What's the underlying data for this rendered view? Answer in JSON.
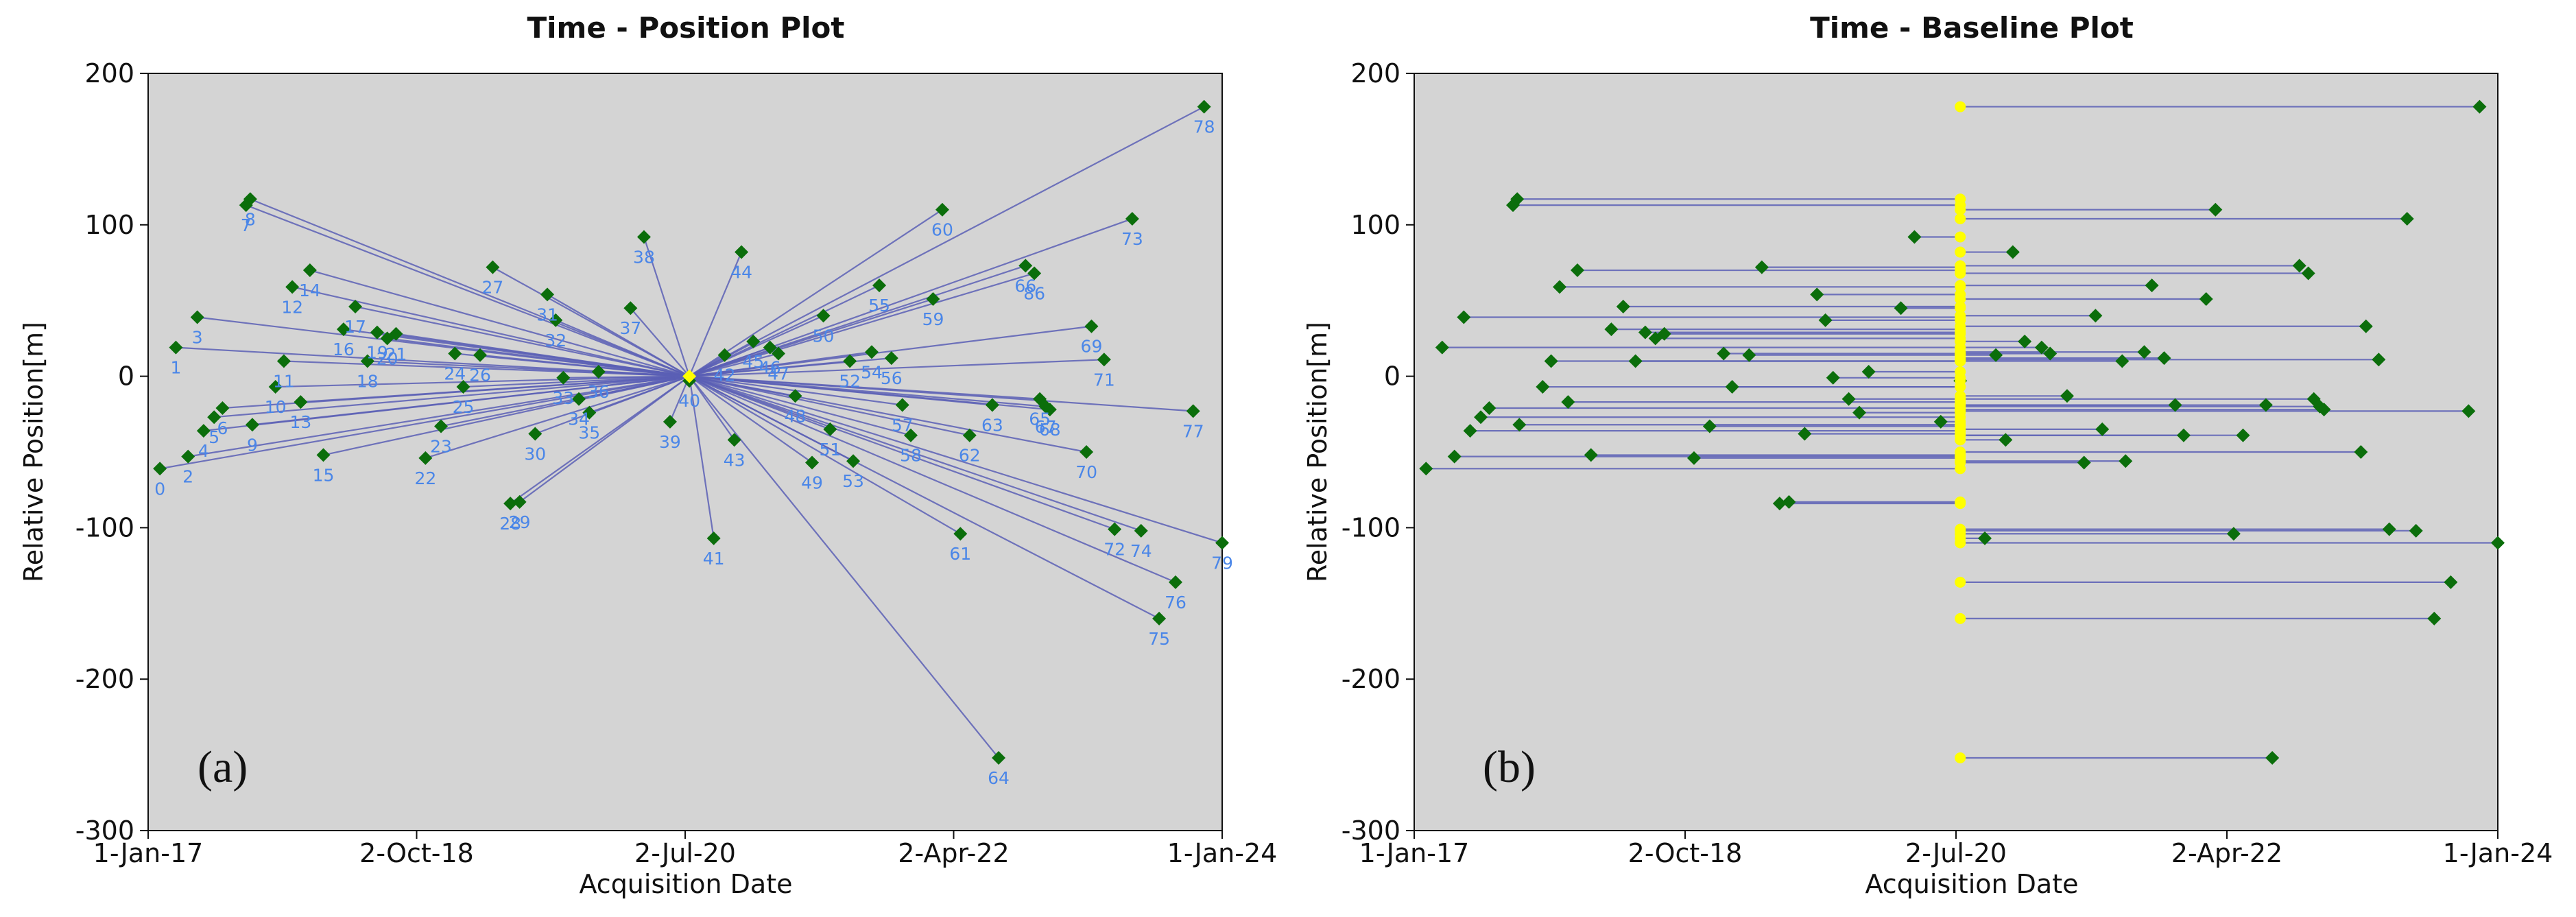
{
  "chart_data": [
    {
      "type": "scatter",
      "title": "Time - Position Plot",
      "xlabel": "Acquisition Date",
      "ylabel": "Relative Position[m]",
      "panel_label": "(a)",
      "xlim": [
        0,
        2556
      ],
      "ylim": [
        -300,
        200
      ],
      "x_ticks": [
        {
          "value": 0,
          "label": "1-Jan-17"
        },
        {
          "value": 639,
          "label": "2-Oct-18"
        },
        {
          "value": 1278,
          "label": "2-Jul-20"
        },
        {
          "value": 1917,
          "label": "2-Apr-22"
        },
        {
          "value": 2556,
          "label": "1-Jan-24"
        }
      ],
      "y_ticks": [
        200,
        100,
        0,
        -100,
        -200,
        -300
      ],
      "reference_point": {
        "x": 1288,
        "y": 0
      },
      "colors": {
        "background": "#d4d4d4",
        "line": "#5a5fb5",
        "marker": "#0b6e0b",
        "point_label": "#4a86e8",
        "reference": "#ffff00"
      },
      "points": [
        {
          "id": 0,
          "label": "0",
          "x": 28,
          "y": -61
        },
        {
          "id": 1,
          "label": "1",
          "x": 66,
          "y": 19
        },
        {
          "id": 2,
          "label": "2",
          "x": 95,
          "y": -53
        },
        {
          "id": 3,
          "label": "3",
          "x": 117,
          "y": 39
        },
        {
          "id": 4,
          "label": "4",
          "x": 132,
          "y": -36
        },
        {
          "id": 5,
          "label": "5",
          "x": 157,
          "y": -27
        },
        {
          "id": 6,
          "label": "6",
          "x": 177,
          "y": -21
        },
        {
          "id": 7,
          "label": "7",
          "x": 233,
          "y": 113
        },
        {
          "id": 8,
          "label": "8",
          "x": 243,
          "y": 117
        },
        {
          "id": 9,
          "label": "9",
          "x": 248,
          "y": -32
        },
        {
          "id": 10,
          "label": "10",
          "x": 303,
          "y": -7
        },
        {
          "id": 11,
          "label": "11",
          "x": 323,
          "y": 10
        },
        {
          "id": 12,
          "label": "12",
          "x": 343,
          "y": 59
        },
        {
          "id": 13,
          "label": "13",
          "x": 363,
          "y": -17
        },
        {
          "id": 14,
          "label": "14",
          "x": 385,
          "y": 70
        },
        {
          "id": 15,
          "label": "15",
          "x": 417,
          "y": -52
        },
        {
          "id": 16,
          "label": "16",
          "x": 465,
          "y": 31
        },
        {
          "id": 17,
          "label": "17",
          "x": 493,
          "y": 46
        },
        {
          "id": 18,
          "label": "18",
          "x": 522,
          "y": 10
        },
        {
          "id": 19,
          "label": "19",
          "x": 545,
          "y": 29
        },
        {
          "id": 20,
          "label": "20",
          "x": 569,
          "y": 25
        },
        {
          "id": 21,
          "label": "21",
          "x": 590,
          "y": 28
        },
        {
          "id": 22,
          "label": "22",
          "x": 660,
          "y": -54
        },
        {
          "id": 23,
          "label": "23",
          "x": 697,
          "y": -33
        },
        {
          "id": 24,
          "label": "24",
          "x": 730,
          "y": 15
        },
        {
          "id": 25,
          "label": "25",
          "x": 750,
          "y": -7
        },
        {
          "id": 26,
          "label": "26",
          "x": 790,
          "y": 14
        },
        {
          "id": 27,
          "label": "27",
          "x": 820,
          "y": 72
        },
        {
          "id": 28,
          "label": "28",
          "x": 862,
          "y": -84
        },
        {
          "id": 29,
          "label": "29",
          "x": 884,
          "y": -83
        },
        {
          "id": 30,
          "label": "30",
          "x": 921,
          "y": -38
        },
        {
          "id": 31,
          "label": "31",
          "x": 950,
          "y": 54
        },
        {
          "id": 32,
          "label": "32",
          "x": 970,
          "y": 37
        },
        {
          "id": 33,
          "label": "33",
          "x": 988,
          "y": -1
        },
        {
          "id": 34,
          "label": "34",
          "x": 1025,
          "y": -15
        },
        {
          "id": 35,
          "label": "35",
          "x": 1050,
          "y": -24
        },
        {
          "id": 36,
          "label": "36",
          "x": 1072,
          "y": 3
        },
        {
          "id": 37,
          "label": "37",
          "x": 1148,
          "y": 45
        },
        {
          "id": 38,
          "label": "38",
          "x": 1180,
          "y": 92
        },
        {
          "id": 39,
          "label": "39",
          "x": 1242,
          "y": -30
        },
        {
          "id": 40,
          "label": "40",
          "x": 1288,
          "y": -3
        },
        {
          "id": 41,
          "label": "41",
          "x": 1346,
          "y": -107
        },
        {
          "id": 42,
          "label": "42",
          "x": 1372,
          "y": 14
        },
        {
          "id": 43,
          "label": "43",
          "x": 1395,
          "y": -42
        },
        {
          "id": 44,
          "label": "44",
          "x": 1412,
          "y": 82
        },
        {
          "id": 45,
          "label": "45",
          "x": 1440,
          "y": 23
        },
        {
          "id": 46,
          "label": "46",
          "x": 1480,
          "y": 19
        },
        {
          "id": 47,
          "label": "47",
          "x": 1500,
          "y": 15
        },
        {
          "id": 48,
          "label": "48",
          "x": 1540,
          "y": -13
        },
        {
          "id": 49,
          "label": "49",
          "x": 1580,
          "y": -57
        },
        {
          "id": 50,
          "label": "50",
          "x": 1607,
          "y": 40
        },
        {
          "id": 51,
          "label": "51",
          "x": 1623,
          "y": -35
        },
        {
          "id": 52,
          "label": "52",
          "x": 1670,
          "y": 10
        },
        {
          "id": 53,
          "label": "53",
          "x": 1678,
          "y": -56
        },
        {
          "id": 54,
          "label": "54",
          "x": 1722,
          "y": 16
        },
        {
          "id": 55,
          "label": "55",
          "x": 1740,
          "y": 60
        },
        {
          "id": 56,
          "label": "56",
          "x": 1769,
          "y": 12
        },
        {
          "id": 57,
          "label": "57",
          "x": 1795,
          "y": -19
        },
        {
          "id": 58,
          "label": "58",
          "x": 1815,
          "y": -39
        },
        {
          "id": 59,
          "label": "59",
          "x": 1868,
          "y": 51
        },
        {
          "id": 60,
          "label": "60",
          "x": 1890,
          "y": 110
        },
        {
          "id": 61,
          "label": "61",
          "x": 1933,
          "y": -104
        },
        {
          "id": 62,
          "label": "62",
          "x": 1955,
          "y": -39
        },
        {
          "id": 63,
          "label": "63",
          "x": 2009,
          "y": -19
        },
        {
          "id": 64,
          "label": "64",
          "x": 2024,
          "y": -252
        },
        {
          "id": 65,
          "label": "65",
          "x": 2122,
          "y": -15
        },
        {
          "id": 66,
          "label": "66",
          "x": 2088,
          "y": 73
        },
        {
          "id": 67,
          "label": "67",
          "x": 2136,
          "y": -20
        },
        {
          "id": 68,
          "label": "68",
          "x": 2146,
          "y": -22
        },
        {
          "id": 69,
          "label": "69",
          "x": 2245,
          "y": 33
        },
        {
          "id": 70,
          "label": "70",
          "x": 2233,
          "y": -50
        },
        {
          "id": 71,
          "label": "71",
          "x": 2275,
          "y": 11
        },
        {
          "id": 72,
          "label": "72",
          "x": 2300,
          "y": -101
        },
        {
          "id": 73,
          "label": "73",
          "x": 2342,
          "y": 104
        },
        {
          "id": 74,
          "label": "74",
          "x": 2363,
          "y": -102
        },
        {
          "id": 75,
          "label": "75",
          "x": 2406,
          "y": -160
        },
        {
          "id": 76,
          "label": "76",
          "x": 2445,
          "y": -136
        },
        {
          "id": 77,
          "label": "77",
          "x": 2487,
          "y": -23
        },
        {
          "id": 78,
          "label": "78",
          "x": 2513,
          "y": 178
        },
        {
          "id": 79,
          "label": "79",
          "x": 2556,
          "y": -110
        },
        {
          "id": 80,
          "label": "86",
          "x": 2109,
          "y": 68
        }
      ]
    },
    {
      "type": "scatter",
      "title": "Time - Baseline Plot",
      "xlabel": "Acquisition Date",
      "ylabel": "Relative Position[m]",
      "panel_label": "(b)",
      "xlim": [
        0,
        2556
      ],
      "ylim": [
        -300,
        200
      ],
      "x_ticks": [
        {
          "value": 0,
          "label": "1-Jan-17"
        },
        {
          "value": 639,
          "label": "2-Oct-18"
        },
        {
          "value": 1278,
          "label": "2-Jul-20"
        },
        {
          "value": 1917,
          "label": "2-Apr-22"
        },
        {
          "value": 2556,
          "label": "1-Jan-24"
        }
      ],
      "y_ticks": [
        200,
        100,
        0,
        -100,
        -200,
        -300
      ],
      "reference_date": 1288,
      "note": "Each acquisition (same points as panel a) is joined by a horizontal baseline to the reference date, where a yellow marker sits at the same relative position."
    }
  ]
}
